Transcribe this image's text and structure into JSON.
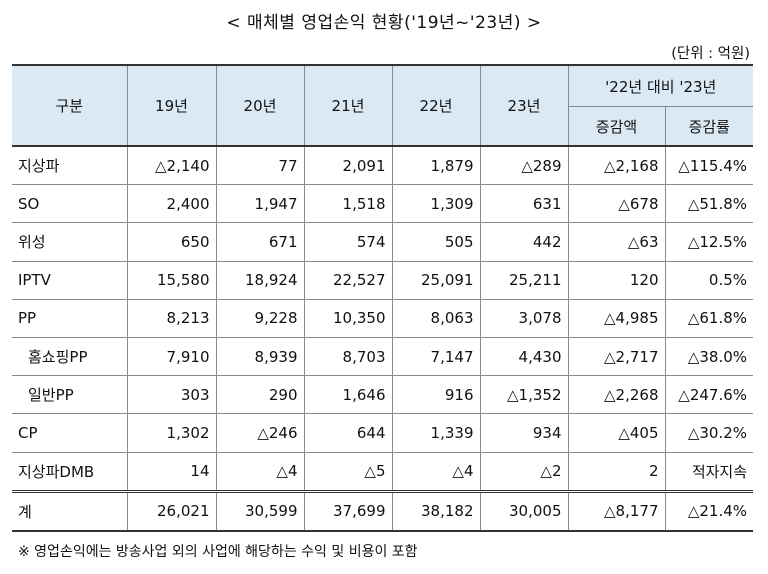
{
  "title": "< 매체별 영업손익 현황('19년~'23년) >",
  "unit": "(단위 : 억원)",
  "header": {
    "category": "구분",
    "years": [
      "19년",
      "20년",
      "21년",
      "22년",
      "23년"
    ],
    "compare_group": "'22년 대비 '23년",
    "compare_cols": [
      "증감액",
      "증감률"
    ]
  },
  "rows": [
    {
      "label": "지상파",
      "indent": false,
      "values": [
        "△2,140",
        "77",
        "2,091",
        "1,879",
        "△289",
        "△2,168",
        "△115.4%"
      ]
    },
    {
      "label": "SO",
      "indent": false,
      "values": [
        "2,400",
        "1,947",
        "1,518",
        "1,309",
        "631",
        "△678",
        "△51.8%"
      ]
    },
    {
      "label": "위성",
      "indent": false,
      "values": [
        "650",
        "671",
        "574",
        "505",
        "442",
        "△63",
        "△12.5%"
      ]
    },
    {
      "label": "IPTV",
      "indent": false,
      "values": [
        "15,580",
        "18,924",
        "22,527",
        "25,091",
        "25,211",
        "120",
        "0.5%"
      ]
    },
    {
      "label": "PP",
      "indent": false,
      "values": [
        "8,213",
        "9,228",
        "10,350",
        "8,063",
        "3,078",
        "△4,985",
        "△61.8%"
      ]
    },
    {
      "label": "홈쇼핑PP",
      "indent": true,
      "values": [
        "7,910",
        "8,939",
        "8,703",
        "7,147",
        "4,430",
        "△2,717",
        "△38.0%"
      ]
    },
    {
      "label": "일반PP",
      "indent": true,
      "values": [
        "303",
        "290",
        "1,646",
        "916",
        "△1,352",
        "△2,268",
        "△247.6%"
      ]
    },
    {
      "label": "CP",
      "indent": false,
      "values": [
        "1,302",
        "△246",
        "644",
        "1,339",
        "934",
        "△405",
        "△30.2%"
      ]
    },
    {
      "label": "지상파DMB",
      "indent": false,
      "values": [
        "14",
        "△4",
        "△5",
        "△4",
        "△2",
        "2",
        "적자지속"
      ]
    }
  ],
  "total": {
    "label": "계",
    "values": [
      "26,021",
      "30,599",
      "37,699",
      "38,182",
      "30,005",
      "△8,177",
      "△21.4%"
    ]
  },
  "note": "※ 영업손익에는 방송사업 외의 사업에 해당하는 수익 및 비용이 포함"
}
